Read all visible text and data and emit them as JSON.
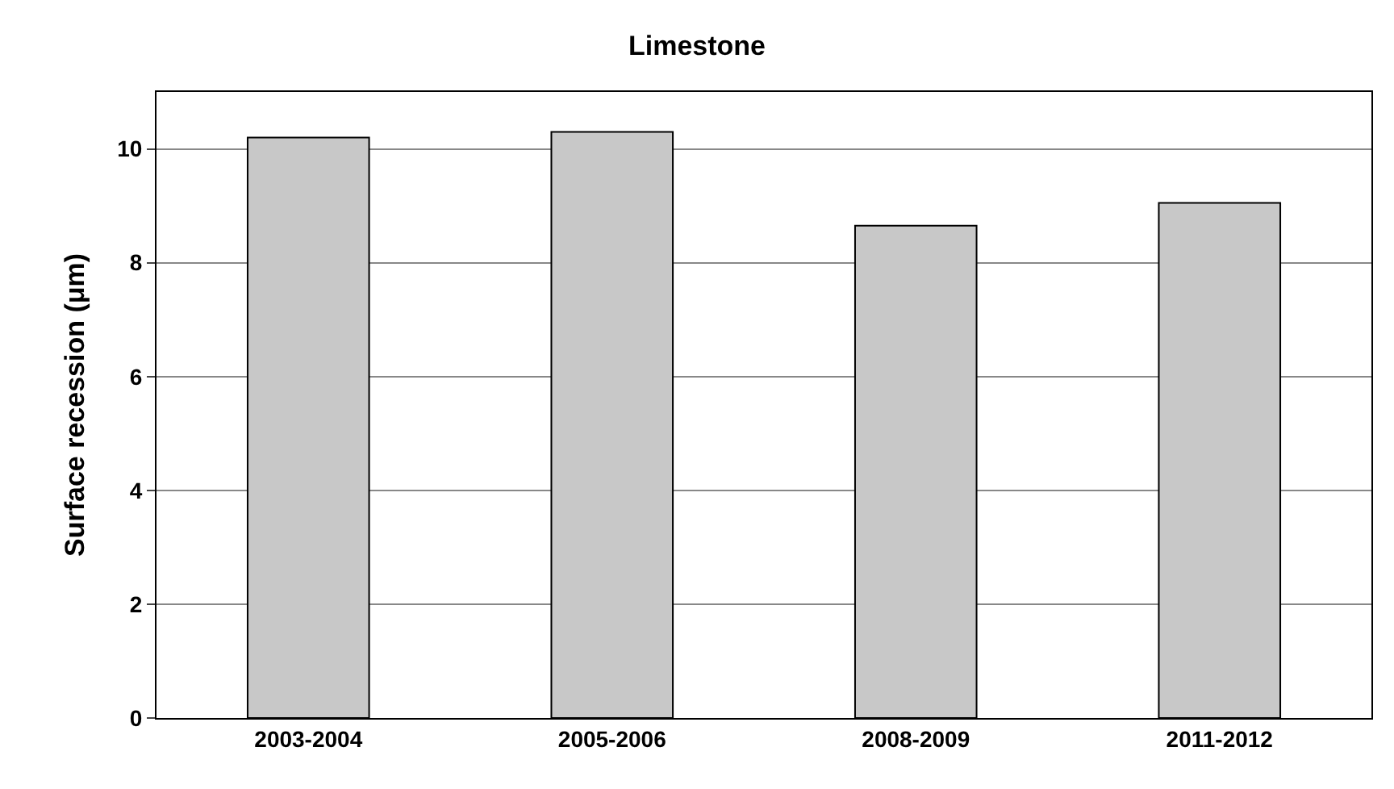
{
  "chart_data": {
    "type": "bar",
    "title": "Limestone",
    "ylabel": "Surface recession (μm)",
    "categories": [
      "2003-2004",
      "2005-2006",
      "2008-2009",
      "2011-2012"
    ],
    "values": [
      10.2,
      10.3,
      8.65,
      9.05
    ],
    "color": "#c8c8c8",
    "ylim": [
      0,
      11
    ],
    "yticks": [
      0,
      2,
      4,
      6,
      8,
      10
    ],
    "grid": "y",
    "legend": false
  }
}
